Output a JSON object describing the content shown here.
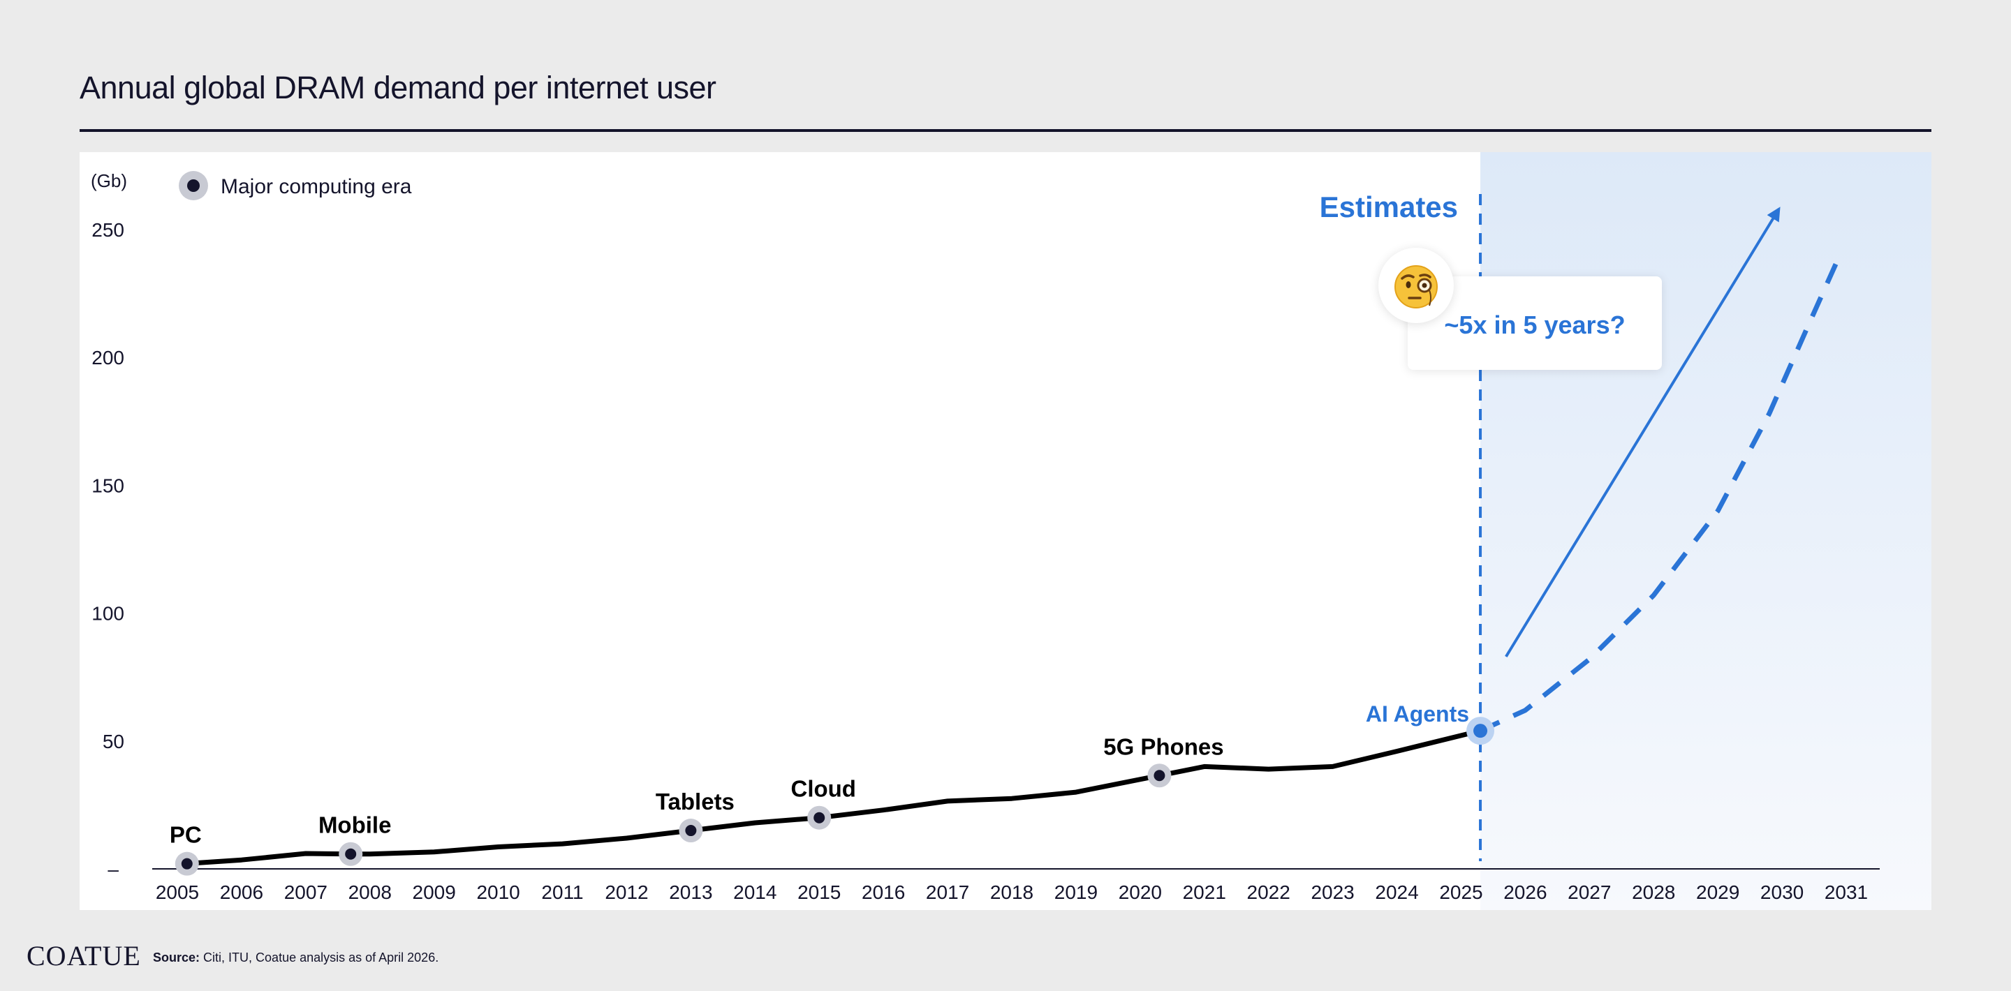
{
  "title": "Annual global DRAM demand per internet user",
  "source_label": "Source:",
  "source_text": "Citi, ITU, Coatue analysis as of April 2026.",
  "logo": "COATUE",
  "callout": {
    "estimates_label": "Estimates",
    "question": "~5x in 5 years?",
    "emoji_icon": "face-with-monocle-icon"
  },
  "colors": {
    "line": "#000000",
    "estimate": "#2a74d6",
    "marker_halo": "#c8cad3",
    "marker_dot": "#14142b",
    "text": "#14142b"
  },
  "chart_data": {
    "type": "line",
    "title": "Annual global DRAM demand per internet user",
    "ylabel": "(Gb)",
    "ylim": [
      0,
      250
    ],
    "y_ticks": [
      {
        "value": 0,
        "label": "–"
      },
      {
        "value": 50,
        "label": "50"
      },
      {
        "value": 100,
        "label": "100"
      },
      {
        "value": 150,
        "label": "150"
      },
      {
        "value": 200,
        "label": "200"
      },
      {
        "value": 250,
        "label": "250"
      }
    ],
    "xlim": [
      2005,
      2031
    ],
    "x_ticks": [
      "2005",
      "2006",
      "2007",
      "2008",
      "2009",
      "2010",
      "2011",
      "2012",
      "2013",
      "2014",
      "2015",
      "2016",
      "2017",
      "2018",
      "2019",
      "2020",
      "2021",
      "2022",
      "2023",
      "2024",
      "2025",
      "2026",
      "2027",
      "2028",
      "2029",
      "2030",
      "2031"
    ],
    "legend": {
      "label": "Major computing era",
      "position": "top-left"
    },
    "grid": false,
    "series": [
      {
        "style": "solid",
        "points": [
          [
            2005.1,
            2
          ],
          [
            2006.0,
            3.5
          ],
          [
            2007.0,
            6
          ],
          [
            2007.7,
            5.8
          ],
          [
            2008.0,
            5.8
          ],
          [
            2009.0,
            6.6
          ],
          [
            2010.0,
            8.6
          ],
          [
            2011.0,
            9.8
          ],
          [
            2012.0,
            12
          ],
          [
            2013.0,
            15
          ],
          [
            2014.0,
            18
          ],
          [
            2015.0,
            20
          ],
          [
            2016.0,
            23
          ],
          [
            2017.0,
            26.5
          ],
          [
            2018.0,
            27.5
          ],
          [
            2019.0,
            30
          ],
          [
            2020.3,
            36.5
          ],
          [
            2021.0,
            40
          ],
          [
            2022.0,
            39
          ],
          [
            2023.0,
            40
          ],
          [
            2024.0,
            46
          ],
          [
            2025.3,
            54
          ]
        ]
      },
      {
        "style": "dashed",
        "color": "#2a74d6",
        "points": [
          [
            2025.3,
            54
          ],
          [
            2026.0,
            62
          ],
          [
            2027.0,
            82
          ],
          [
            2028.0,
            107
          ],
          [
            2029.0,
            140
          ],
          [
            2029.8,
            178
          ],
          [
            2030.4,
            212
          ],
          [
            2030.9,
            240
          ]
        ]
      }
    ],
    "eras": [
      {
        "label": "PC",
        "x": 2005.15,
        "y": 2
      },
      {
        "label": "Mobile",
        "x": 2007.7,
        "y": 5.8
      },
      {
        "label": "Tablets",
        "x": 2013.0,
        "y": 15
      },
      {
        "label": "Cloud",
        "x": 2015.0,
        "y": 20
      },
      {
        "label": "5G Phones",
        "x": 2020.3,
        "y": 36.5
      },
      {
        "label": "AI Agents",
        "x": 2025.3,
        "y": 54,
        "highlight": true
      }
    ],
    "estimates_divider_x": 2025.3,
    "trend_arrow": {
      "from": [
        2025.7,
        83
      ],
      "to": [
        2029.95,
        258
      ]
    }
  }
}
